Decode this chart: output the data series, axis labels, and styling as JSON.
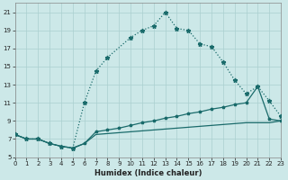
{
  "xlabel": "Humidex (Indice chaleur)",
  "bg_color": "#cce8e8",
  "grid_color": "#aacfcf",
  "line_color": "#1a6b6b",
  "xlim": [
    0,
    23
  ],
  "ylim": [
    5,
    22
  ],
  "xticks": [
    0,
    1,
    2,
    3,
    4,
    5,
    6,
    7,
    8,
    9,
    10,
    11,
    12,
    13,
    14,
    15,
    16,
    17,
    18,
    19,
    20,
    21,
    22,
    23
  ],
  "yticks": [
    5,
    7,
    9,
    11,
    13,
    15,
    17,
    19,
    21
  ],
  "main_x": [
    0,
    1,
    2,
    3,
    4,
    5,
    6,
    7,
    8,
    10,
    11,
    12,
    13,
    14,
    15,
    16,
    17,
    18,
    19,
    20,
    21,
    22,
    23
  ],
  "main_y": [
    7.5,
    7.0,
    7.0,
    6.5,
    6.2,
    6.0,
    11.0,
    14.5,
    16.0,
    18.2,
    19.0,
    19.5,
    21.0,
    19.2,
    19.0,
    17.5,
    17.2,
    15.5,
    13.5,
    12.0,
    12.8,
    11.2,
    9.5
  ],
  "line2_x": [
    0,
    1,
    2,
    3,
    4,
    5,
    6,
    7,
    8,
    9,
    10,
    11,
    12,
    13,
    14,
    15,
    16,
    17,
    18,
    19,
    20,
    21,
    22,
    23
  ],
  "line2_y": [
    7.5,
    7.0,
    7.0,
    6.5,
    6.2,
    6.0,
    6.5,
    7.8,
    8.0,
    8.2,
    8.5,
    8.8,
    9.0,
    9.3,
    9.5,
    9.8,
    10.0,
    10.3,
    10.5,
    10.8,
    11.0,
    12.8,
    9.2,
    9.0
  ],
  "line3_x": [
    0,
    1,
    2,
    3,
    4,
    5,
    6,
    7,
    8,
    9,
    10,
    11,
    12,
    13,
    14,
    15,
    16,
    17,
    18,
    19,
    20,
    21,
    22,
    23
  ],
  "line3_y": [
    7.5,
    7.0,
    7.0,
    6.5,
    6.2,
    6.0,
    6.5,
    7.5,
    7.6,
    7.7,
    7.8,
    7.9,
    8.0,
    8.1,
    8.2,
    8.3,
    8.4,
    8.5,
    8.6,
    8.7,
    8.8,
    8.8,
    8.8,
    9.0
  ]
}
